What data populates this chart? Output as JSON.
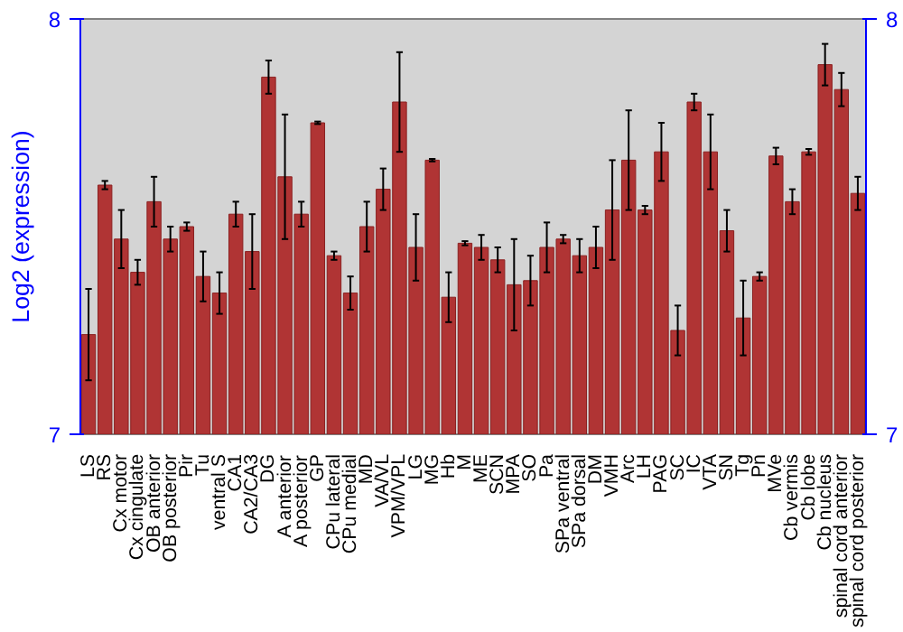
{
  "chart_data": {
    "type": "bar",
    "ylabel": "Log2 (expression)",
    "categories": [
      "LS",
      "RS",
      "Cx motor",
      "Cx cingulate",
      "OB anterior",
      "OB posterior",
      "Pir",
      "Tu",
      "ventral S",
      "CA1",
      "CA2/CA3",
      "DG",
      "A anterior",
      "A posterior",
      "GP",
      "CPu lateral",
      "CPu medial",
      "MD",
      "VA/VL",
      "VPM/VPL",
      "LG",
      "MG",
      "Hb",
      "M",
      "ME",
      "SCN",
      "MPA",
      "SO",
      "Pa",
      "SPa ventral",
      "SPa dorsal",
      "DM",
      "VMH",
      "Arc",
      "LH",
      "PAG",
      "SC",
      "IC",
      "VTA",
      "SN",
      "Tg",
      "Pn",
      "MVe",
      "Cb vermis",
      "Cb lobe",
      "Cb nucleus",
      "spinal cord anterior",
      "spinal cord posterior"
    ],
    "values": [
      7.24,
      7.6,
      7.47,
      7.39,
      7.56,
      7.47,
      7.5,
      7.38,
      7.34,
      7.53,
      7.44,
      7.86,
      7.62,
      7.53,
      7.75,
      7.43,
      7.34,
      7.5,
      7.59,
      7.8,
      7.45,
      7.66,
      7.33,
      7.46,
      7.45,
      7.42,
      7.36,
      7.37,
      7.45,
      7.47,
      7.43,
      7.45,
      7.54,
      7.66,
      7.54,
      7.68,
      7.25,
      7.8,
      7.68,
      7.49,
      7.28,
      7.38,
      7.67,
      7.56,
      7.68,
      7.89,
      7.83,
      7.58
    ],
    "errors": [
      0.11,
      0.01,
      0.07,
      0.03,
      0.06,
      0.03,
      0.01,
      0.06,
      0.05,
      0.03,
      0.09,
      0.04,
      0.15,
      0.03,
      0.003,
      0.01,
      0.04,
      0.06,
      0.05,
      0.12,
      0.08,
      0.003,
      0.06,
      0.005,
      0.03,
      0.03,
      0.11,
      0.06,
      0.06,
      0.01,
      0.04,
      0.05,
      0.12,
      0.12,
      0.01,
      0.07,
      0.06,
      0.02,
      0.09,
      0.05,
      0.09,
      0.01,
      0.02,
      0.03,
      0.007,
      0.05,
      0.04,
      0.04
    ],
    "color": "#b03434",
    "ylim": [
      7,
      8
    ],
    "yticks": [
      7,
      8
    ],
    "y2lim": [
      7,
      8
    ],
    "y2ticks": [
      7,
      8
    ],
    "grid": false
  }
}
